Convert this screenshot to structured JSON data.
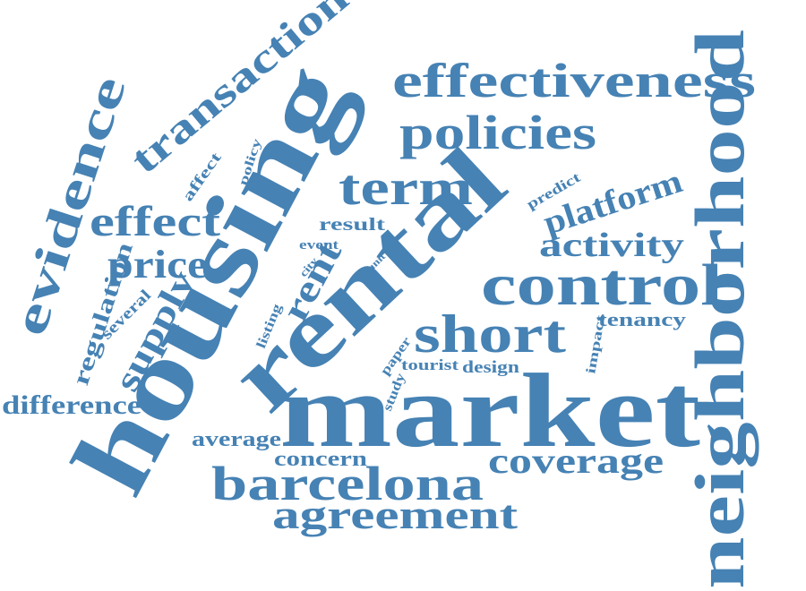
{
  "style": {
    "word_color": "#4682b4",
    "background": "#ffffff"
  },
  "words": {
    "market": "market",
    "housing": "housing",
    "rental": "rental",
    "neighborhood": "neighborhood",
    "control": "control",
    "effectiveness": "effectiveness",
    "policies": "policies",
    "transaction": "transaction",
    "evidence": "evidence",
    "short": "short",
    "barcelona": "barcelona",
    "agreement": "agreement",
    "term": "term",
    "effect": "effect",
    "price": "price",
    "coverage": "coverage",
    "activity": "activity",
    "platform": "platform",
    "rent": "rent",
    "supply": "supply",
    "regulation": "regulation",
    "difference": "difference",
    "average": "average",
    "concern": "concern",
    "tenancy": "tenancy",
    "tourist": "tourist",
    "design": "design",
    "result": "result",
    "several": "several",
    "affect": "affect",
    "policy": "policy",
    "predict": "predict",
    "event": "event",
    "listing": "listing",
    "paper": "paper",
    "study": "study",
    "impact": "impact",
    "city": "city",
    "unit": "unit"
  }
}
